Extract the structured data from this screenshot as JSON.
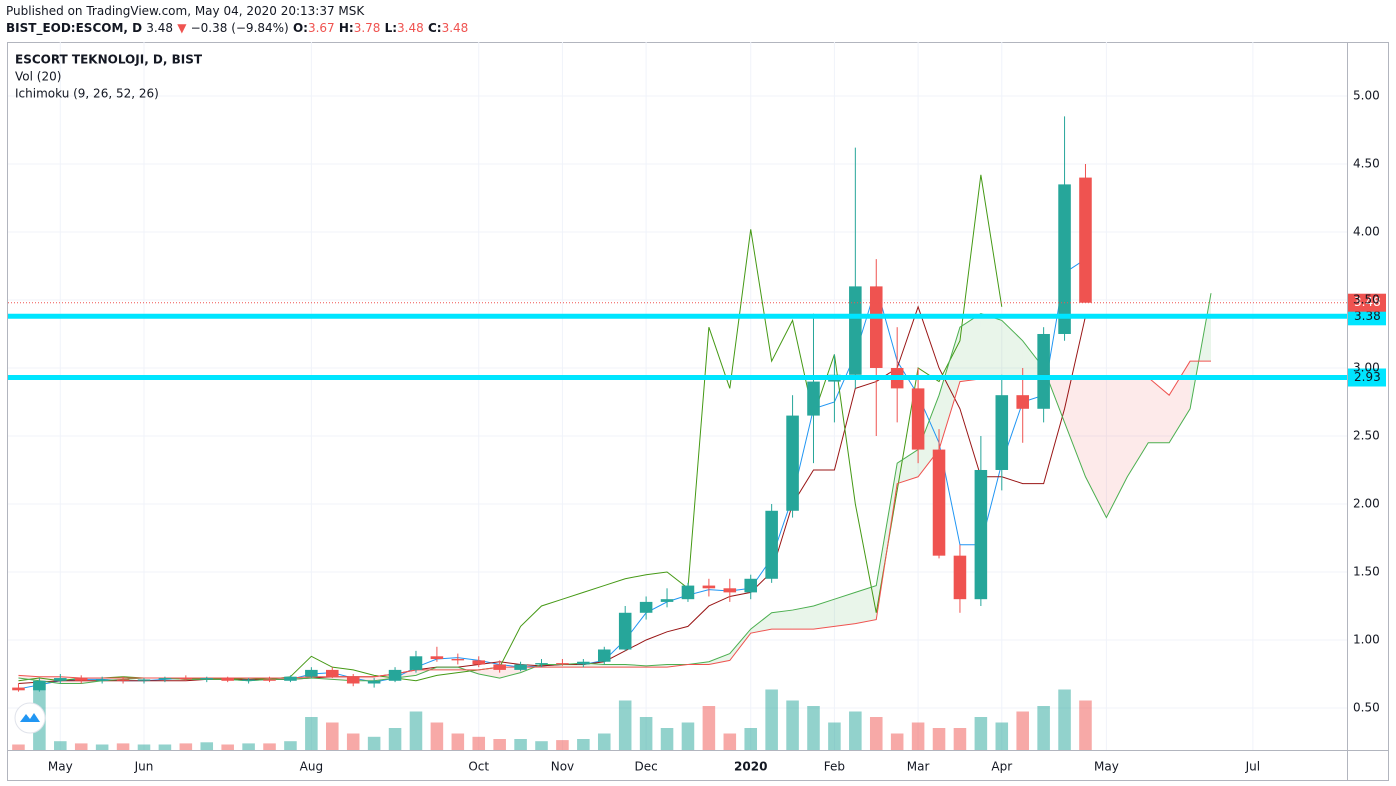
{
  "header": {
    "published": "Published on TradingView.com, May 04, 2020 20:13:37 MSK",
    "symbol": "BIST_EOD:ESCOM, D",
    "last": "3.48",
    "arrow": "▼",
    "change": "−0.38 (−9.84%)",
    "o_label": "O:",
    "open": "3.67",
    "h_label": "H:",
    "high": "3.78",
    "l_label": "L:",
    "low": "3.48",
    "c_label": "C:",
    "close": "3.48"
  },
  "chart_data": {
    "type": "candlestick",
    "title": "ESCORT TEKNOLOJI, D, BIST",
    "indicators": [
      "Vol (20)",
      "Ichimoku (9, 26, 52, 26)"
    ],
    "categories": [
      null,
      null,
      "May",
      null,
      null,
      null,
      "Jun",
      null,
      null,
      null,
      null,
      null,
      null,
      null,
      "Aug",
      null,
      null,
      null,
      null,
      null,
      null,
      null,
      "Oct",
      null,
      null,
      null,
      "Nov",
      null,
      null,
      null,
      "Dec",
      null,
      null,
      null,
      null,
      "2020",
      null,
      null,
      null,
      "Feb",
      null,
      null,
      null,
      "Mar",
      null,
      null,
      null,
      "Apr",
      null,
      null,
      null,
      null,
      "May",
      null,
      null,
      null,
      null,
      null,
      null,
      "Jul",
      null,
      null,
      null,
      null
    ],
    "open": [
      0.65,
      0.63,
      0.7,
      0.72,
      0.7,
      0.71,
      0.7,
      0.71,
      0.72,
      0.71,
      0.72,
      0.7,
      0.71,
      0.7,
      0.73,
      0.78,
      0.73,
      0.68,
      0.7,
      0.78,
      0.88,
      0.86,
      0.85,
      0.82,
      0.78,
      0.82,
      0.83,
      0.82,
      0.84,
      0.93,
      1.2,
      1.28,
      1.3,
      1.4,
      1.38,
      1.35,
      1.45,
      1.95,
      2.65,
      2.9,
      2.95,
      3.6,
      3.0,
      2.85,
      2.4,
      1.62,
      1.3,
      2.25,
      2.8,
      2.7,
      3.25,
      4.4,
      null,
      null,
      null,
      null,
      null,
      null,
      null,
      null,
      null,
      null,
      null,
      null
    ],
    "high": [
      0.68,
      0.72,
      0.75,
      0.74,
      0.73,
      0.73,
      0.72,
      0.73,
      0.74,
      0.73,
      0.73,
      0.72,
      0.73,
      0.74,
      0.8,
      0.8,
      0.75,
      0.72,
      0.8,
      0.92,
      0.95,
      0.9,
      0.88,
      0.85,
      0.84,
      0.86,
      0.86,
      0.86,
      0.95,
      1.25,
      1.32,
      1.38,
      1.42,
      1.45,
      1.45,
      1.48,
      2.0,
      2.8,
      3.4,
      3.1,
      4.62,
      3.8,
      3.3,
      3.0,
      2.55,
      1.7,
      2.5,
      2.95,
      3.0,
      3.3,
      4.85,
      4.5,
      null,
      null,
      null,
      null,
      null,
      null,
      null,
      null,
      null,
      null,
      null,
      null
    ],
    "low": [
      0.62,
      0.62,
      0.68,
      0.68,
      0.68,
      0.68,
      0.68,
      0.69,
      0.7,
      0.69,
      0.69,
      0.68,
      0.69,
      0.69,
      0.72,
      0.72,
      0.66,
      0.65,
      0.69,
      0.76,
      0.84,
      0.82,
      0.8,
      0.76,
      0.77,
      0.8,
      0.81,
      0.8,
      0.82,
      0.92,
      1.15,
      1.24,
      1.28,
      1.32,
      1.28,
      1.3,
      1.42,
      1.9,
      2.3,
      2.6,
      2.85,
      2.5,
      2.6,
      2.3,
      1.6,
      1.2,
      1.25,
      2.1,
      2.45,
      2.6,
      3.2,
      3.48,
      null,
      null,
      null,
      null,
      null,
      null,
      null,
      null,
      null,
      null,
      null,
      null
    ],
    "close": [
      0.63,
      0.7,
      0.72,
      0.7,
      0.71,
      0.7,
      0.71,
      0.72,
      0.71,
      0.72,
      0.7,
      0.71,
      0.7,
      0.73,
      0.78,
      0.73,
      0.68,
      0.7,
      0.78,
      0.88,
      0.86,
      0.85,
      0.82,
      0.78,
      0.82,
      0.83,
      0.82,
      0.84,
      0.93,
      1.2,
      1.28,
      1.3,
      1.4,
      1.38,
      1.35,
      1.45,
      1.95,
      2.65,
      2.9,
      2.95,
      3.6,
      3.0,
      2.85,
      2.4,
      1.62,
      1.3,
      2.25,
      2.8,
      2.7,
      3.25,
      4.35,
      3.48,
      null,
      null,
      null,
      null,
      null,
      null,
      null,
      null,
      null,
      null,
      null,
      null
    ],
    "up_color": "#26a69a",
    "down_color": "#ef5350",
    "volume": {
      "values": [
        5,
        60,
        8,
        6,
        5,
        6,
        5,
        5,
        6,
        7,
        5,
        6,
        6,
        8,
        30,
        25,
        15,
        12,
        20,
        35,
        25,
        15,
        12,
        10,
        10,
        8,
        9,
        10,
        15,
        45,
        30,
        20,
        25,
        40,
        15,
        20,
        55,
        45,
        40,
        25,
        35,
        30,
        15,
        25,
        20,
        20,
        30,
        25,
        35,
        40,
        55,
        45,
        null,
        null,
        null,
        null,
        null,
        null,
        null,
        null,
        null,
        null,
        null,
        null
      ],
      "vlim": [
        0,
        100
      ]
    },
    "series": [
      {
        "color": "#2196f3",
        "values": [
          0.64,
          0.67,
          0.7,
          0.71,
          0.71,
          0.7,
          0.7,
          0.71,
          0.72,
          0.71,
          0.71,
          0.7,
          0.71,
          0.71,
          0.75,
          0.76,
          0.72,
          0.69,
          0.72,
          0.8,
          0.86,
          0.87,
          0.85,
          0.82,
          0.8,
          0.81,
          0.82,
          0.82,
          0.85,
          1.0,
          1.2,
          1.28,
          1.33,
          1.37,
          1.36,
          1.38,
          1.6,
          2.05,
          2.7,
          2.75,
          3.1,
          3.6,
          3.05,
          2.8,
          2.45,
          1.7,
          1.7,
          2.3,
          2.75,
          2.8,
          3.7,
          3.8,
          null,
          null,
          null,
          null,
          null,
          null,
          null,
          null,
          null,
          null,
          null,
          null
        ]
      },
      {
        "color": "#991515",
        "values": [
          0.68,
          0.69,
          0.7,
          0.7,
          0.7,
          0.7,
          0.7,
          0.7,
          0.7,
          0.71,
          0.71,
          0.71,
          0.71,
          0.71,
          0.72,
          0.73,
          0.73,
          0.73,
          0.75,
          0.78,
          0.8,
          0.8,
          0.82,
          0.84,
          0.82,
          0.81,
          0.82,
          0.82,
          0.84,
          0.92,
          1.0,
          1.06,
          1.1,
          1.25,
          1.32,
          1.35,
          1.5,
          2.0,
          2.25,
          2.25,
          2.85,
          2.9,
          3.0,
          3.45,
          3.0,
          2.7,
          2.2,
          2.2,
          2.15,
          2.15,
          2.7,
          3.38,
          null,
          null,
          null,
          null,
          null,
          null,
          null,
          null,
          null,
          null,
          null,
          null
        ]
      },
      {
        "color": "#459915",
        "values": [
          0.7,
          0.72,
          0.7,
          0.72,
          0.72,
          0.73,
          0.72,
          0.72,
          0.71,
          0.72,
          0.71,
          0.72,
          0.71,
          0.73,
          0.88,
          0.8,
          0.78,
          0.74,
          0.72,
          0.7,
          0.74,
          0.76,
          0.78,
          0.8,
          1.1,
          1.25,
          1.3,
          1.35,
          1.4,
          1.45,
          1.48,
          1.5,
          1.38,
          3.3,
          2.85,
          4.02,
          3.05,
          3.35,
          2.65,
          3.1,
          2.0,
          1.2,
          2.1,
          3.0,
          2.9,
          3.2,
          4.42,
          3.45,
          null,
          null,
          null,
          null,
          null,
          null,
          null,
          null,
          null,
          null,
          null,
          null,
          null,
          null,
          null,
          null
        ]
      },
      {
        "color": "#4caf50",
        "values": [
          0.72,
          0.7,
          0.68,
          0.68,
          0.7,
          0.71,
          0.72,
          0.72,
          0.71,
          0.71,
          0.71,
          0.7,
          0.71,
          0.71,
          0.72,
          0.71,
          0.7,
          0.7,
          0.72,
          0.74,
          0.8,
          0.8,
          0.75,
          0.72,
          0.76,
          0.82,
          0.82,
          0.83,
          0.82,
          0.82,
          0.81,
          0.82,
          0.82,
          0.84,
          0.9,
          1.08,
          1.2,
          1.22,
          1.25,
          1.3,
          1.35,
          1.4,
          2.3,
          2.4,
          2.8,
          3.3,
          3.4,
          3.35,
          3.2,
          3.0,
          2.6,
          2.2,
          1.9,
          2.2,
          2.45,
          2.45,
          2.7,
          3.55,
          null,
          null,
          null,
          null,
          null,
          null
        ]
      },
      {
        "color": "#ef5350",
        "values": [
          0.74,
          0.73,
          0.73,
          0.72,
          0.72,
          0.72,
          0.72,
          0.72,
          0.72,
          0.72,
          0.72,
          0.72,
          0.72,
          0.72,
          0.73,
          0.73,
          0.73,
          0.73,
          0.75,
          0.78,
          0.78,
          0.78,
          0.78,
          0.8,
          0.8,
          0.8,
          0.8,
          0.8,
          0.8,
          0.8,
          0.8,
          0.8,
          0.82,
          0.82,
          0.85,
          1.05,
          1.08,
          1.08,
          1.08,
          1.1,
          1.12,
          1.15,
          2.15,
          2.2,
          2.4,
          2.9,
          2.92,
          2.93,
          2.93,
          2.93,
          2.93,
          2.93,
          2.93,
          2.93,
          2.93,
          2.8,
          3.05,
          3.05,
          null,
          null,
          null,
          null,
          null,
          null
        ]
      }
    ],
    "cloud": {
      "span_a": 3,
      "span_b": 4,
      "up_color": "#4caf50",
      "down_color": "#ef5350"
    },
    "hlines": [
      {
        "value": 3.38,
        "color": "#00e5ff"
      },
      {
        "value": 2.93,
        "color": "#00e5ff"
      }
    ],
    "last_price": {
      "value": 3.48,
      "color": "#ef5350"
    },
    "ylim": [
      0.191,
      5.397
    ],
    "yticks": [
      {
        "value": 0.5,
        "label": "0.50"
      },
      {
        "value": 1,
        "label": "1.00"
      },
      {
        "value": 1.5,
        "label": "1.50"
      },
      {
        "value": 2,
        "label": "2.00"
      },
      {
        "value": 2.5,
        "label": "2.50"
      },
      {
        "value": 3,
        "label": "3.00"
      },
      {
        "value": 3.5,
        "label": "3.50"
      },
      {
        "value": 4,
        "label": "4.00"
      },
      {
        "value": 4.5,
        "label": "4.50"
      },
      {
        "value": 5,
        "label": "5.00"
      }
    ],
    "grid": true
  }
}
